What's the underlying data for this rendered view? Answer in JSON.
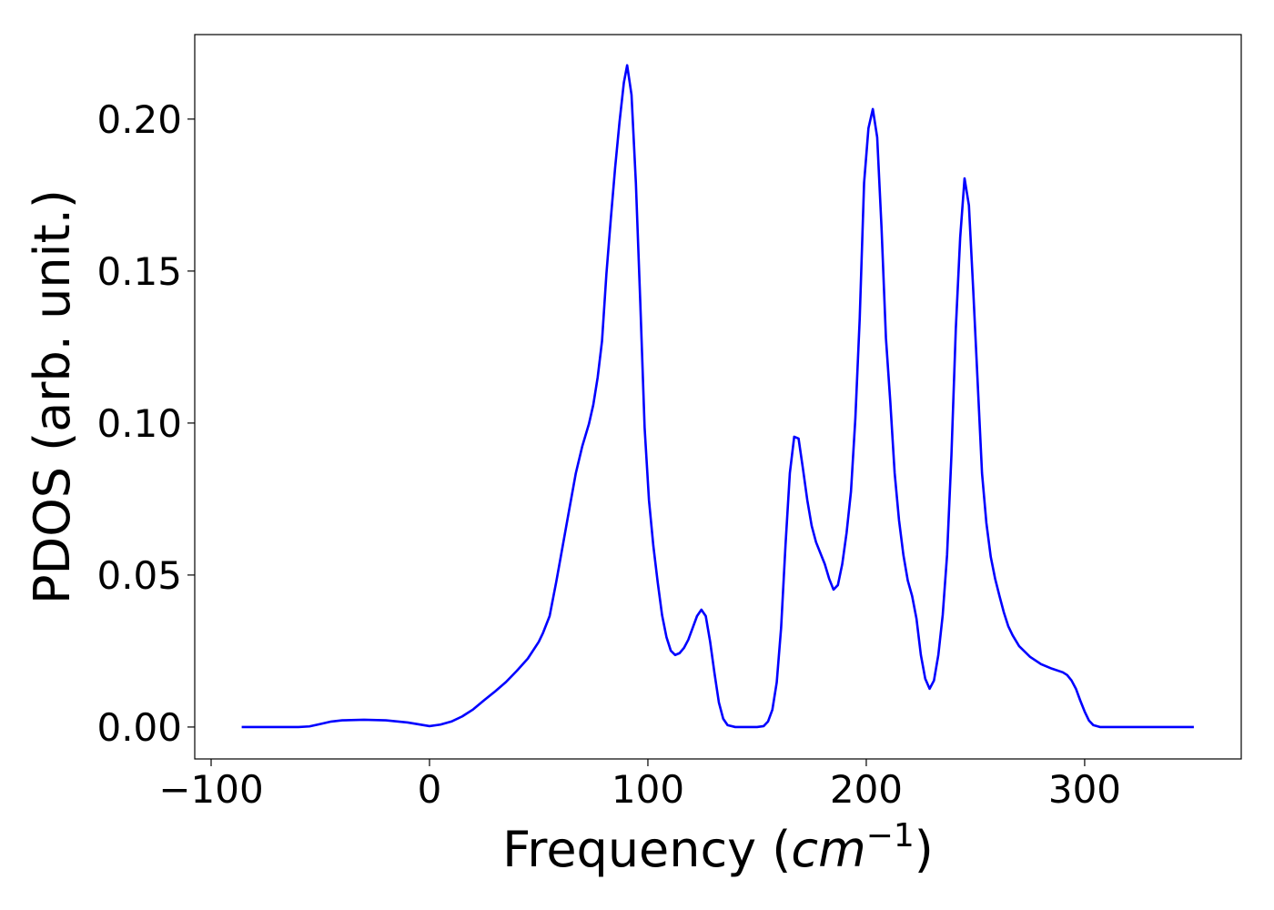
{
  "chart_data": {
    "type": "line",
    "x_label": {
      "text": "Frequency (",
      "unit": "cm",
      "exponent": "−1",
      "close": ")"
    },
    "y_label": "PDOS (arb. unit.)",
    "xlim": [
      -107.5,
      371.7
    ],
    "ylim": [
      -0.0105,
      0.2278
    ],
    "xticks": [
      {
        "value": -100,
        "label": "−100"
      },
      0,
      100,
      200,
      300
    ],
    "yticks": [
      {
        "value": 0,
        "label": "0.00"
      },
      {
        "value": 0.05,
        "label": "0.05"
      },
      {
        "value": 0.1,
        "label": "0.10"
      },
      0.15,
      {
        "value": 0.2,
        "label": "0.20"
      }
    ],
    "series": [
      {
        "color": "#0000ff",
        "x": [
          -86,
          -60,
          -55,
          -50,
          -45,
          -40,
          -30,
          -20,
          -10,
          0,
          5,
          10,
          15,
          20,
          25,
          30,
          35,
          40,
          45,
          50,
          52,
          55,
          58,
          61,
          64,
          67,
          70,
          73,
          75,
          77,
          79,
          81,
          83,
          85,
          87,
          89,
          90.5,
          92.5,
          94.5,
          96.5,
          98.5,
          100.5,
          102.5,
          104.5,
          106.5,
          108.5,
          110.5,
          112.5,
          114.5,
          116.5,
          118.5,
          120.5,
          122.5,
          124.5,
          126.5,
          128.5,
          130.5,
          132.5,
          134.5,
          136.5,
          140,
          150,
          153,
          155,
          157,
          159,
          161,
          163,
          165,
          167,
          169,
          171,
          173,
          175,
          177,
          179,
          181,
          183,
          185,
          187,
          189,
          191,
          193,
          195,
          197,
          199,
          201,
          203,
          205,
          207,
          209,
          211,
          213,
          215,
          217,
          219,
          221,
          223,
          225,
          227,
          229,
          231,
          233,
          235,
          237,
          239,
          241,
          243,
          245,
          247,
          249,
          251,
          253,
          255,
          257,
          259,
          261,
          263,
          265,
          267,
          270,
          275,
          280,
          285,
          290,
          292,
          294,
          296,
          298,
          300,
          302,
          304,
          307,
          350
        ],
        "values": [
          0,
          0,
          0.0002,
          0.001,
          0.0018,
          0.0022,
          0.0024,
          0.0022,
          0.0015,
          0.0003,
          0.0008,
          0.0018,
          0.0035,
          0.0058,
          0.0088,
          0.0117,
          0.0148,
          0.0185,
          0.0225,
          0.028,
          0.031,
          0.0365,
          0.0476,
          0.0596,
          0.0716,
          0.0835,
          0.0925,
          0.0997,
          0.106,
          0.115,
          0.127,
          0.149,
          0.167,
          0.184,
          0.199,
          0.212,
          0.2177,
          0.208,
          0.179,
          0.14,
          0.0985,
          0.0746,
          0.0596,
          0.0476,
          0.0368,
          0.0296,
          0.0251,
          0.0237,
          0.0243,
          0.026,
          0.0287,
          0.0326,
          0.0365,
          0.0386,
          0.0365,
          0.0281,
          0.0177,
          0.0081,
          0.0027,
          0.0006,
          0,
          0,
          0.0003,
          0.0018,
          0.0057,
          0.0147,
          0.0326,
          0.0596,
          0.0835,
          0.0955,
          0.0949,
          0.085,
          0.0746,
          0.0662,
          0.0608,
          0.0572,
          0.0536,
          0.0488,
          0.0452,
          0.0467,
          0.0536,
          0.064,
          0.0775,
          0.1015,
          0.1344,
          0.179,
          0.197,
          0.2033,
          0.194,
          0.164,
          0.128,
          0.107,
          0.0835,
          0.068,
          0.0566,
          0.0482,
          0.0431,
          0.0356,
          0.0237,
          0.0159,
          0.0126,
          0.0153,
          0.0237,
          0.0368,
          0.0566,
          0.0895,
          0.131,
          0.161,
          0.1805,
          0.1716,
          0.1434,
          0.1135,
          0.0835,
          0.0671,
          0.056,
          0.0488,
          0.0431,
          0.0377,
          0.0332,
          0.0302,
          0.0266,
          0.0231,
          0.0207,
          0.0192,
          0.018,
          0.0171,
          0.0153,
          0.0126,
          0.0087,
          0.0051,
          0.0021,
          0.0006,
          0,
          0
        ]
      }
    ]
  }
}
